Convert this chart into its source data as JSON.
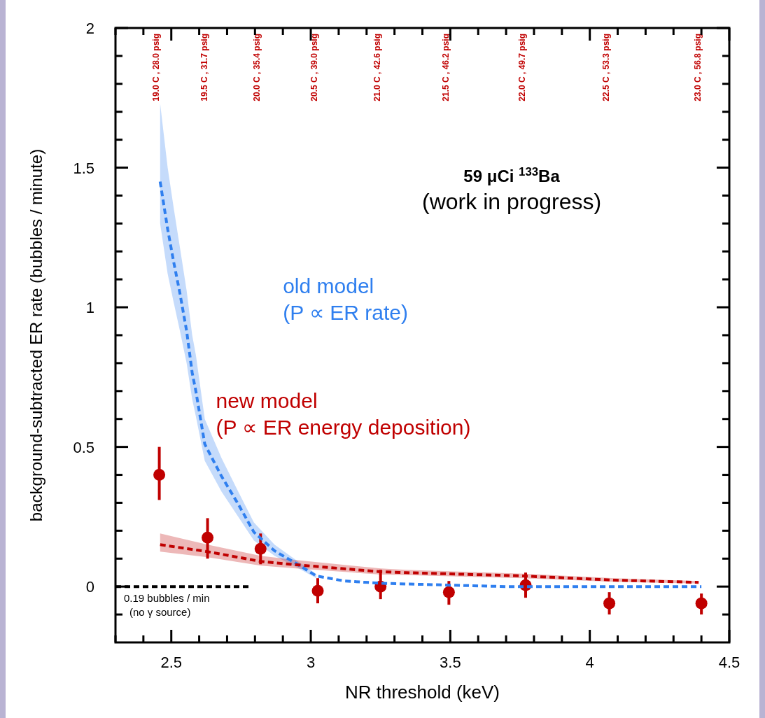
{
  "chart_data": {
    "type": "line",
    "xlabel": "NR threshold (keV)",
    "ylabel": "background-subtracted ER rate (bubbles / minute)",
    "xlim": [
      2.3,
      4.5
    ],
    "ylim": [
      -0.2,
      2
    ],
    "xticks": [
      {
        "value": 2.3,
        "label": null
      },
      {
        "value": 2.4,
        "label": null
      },
      2.5,
      {
        "value": 2.6,
        "label": null
      },
      {
        "value": 2.7,
        "label": null
      },
      {
        "value": 2.8,
        "label": null
      },
      {
        "value": 2.9,
        "label": null
      },
      3,
      {
        "value": 3.1,
        "label": null
      },
      {
        "value": 3.2,
        "label": null
      },
      {
        "value": 3.3,
        "label": null
      },
      {
        "value": 3.4,
        "label": null
      },
      3.5,
      {
        "value": 3.6,
        "label": null
      },
      {
        "value": 3.7,
        "label": null
      },
      {
        "value": 3.8,
        "label": null
      },
      {
        "value": 3.9,
        "label": null
      },
      4,
      {
        "value": 4.1,
        "label": null
      },
      {
        "value": 4.2,
        "label": null
      },
      {
        "value": 4.3,
        "label": null
      },
      {
        "value": 4.4,
        "label": null
      },
      4.5
    ],
    "yticks": [
      {
        "value": -0.1,
        "label": null
      },
      0,
      {
        "value": 0.1,
        "label": null
      },
      {
        "value": 0.2,
        "label": null
      },
      {
        "value": 0.3,
        "label": null
      },
      {
        "value": 0.4,
        "label": null
      },
      0.5,
      {
        "value": 0.6,
        "label": null
      },
      {
        "value": 0.7,
        "label": null
      },
      {
        "value": 0.8,
        "label": null
      },
      {
        "value": 0.9,
        "label": null
      },
      1,
      {
        "value": 1.1,
        "label": null
      },
      {
        "value": 1.2,
        "label": null
      },
      {
        "value": 1.3,
        "label": null
      },
      {
        "value": 1.4,
        "label": null
      },
      1.5,
      {
        "value": 1.6,
        "label": null
      },
      {
        "value": 1.7,
        "label": null
      },
      {
        "value": 1.8,
        "label": null
      },
      {
        "value": 1.9,
        "label": null
      },
      2
    ],
    "grid": false,
    "series": [
      {
        "name": "old model\n(P ∝ ER rate)",
        "color": "#2f7fef",
        "line_style": "dashed",
        "x": [
          2.46,
          2.487,
          2.508,
          2.53,
          2.555,
          2.575,
          2.588,
          2.62,
          2.68,
          2.74,
          2.796,
          2.87,
          2.947,
          3.02,
          3.12,
          3.25,
          3.5,
          3.7,
          4.0,
          4.4
        ],
        "values": [
          1.45,
          1.28,
          1.165,
          1.055,
          0.915,
          0.765,
          0.7,
          0.51,
          0.395,
          0.295,
          0.195,
          0.128,
          0.083,
          0.038,
          0.02,
          0.012,
          0.005,
          0,
          0,
          0
        ],
        "upper": [
          1.73,
          1.5,
          1.36,
          1.22,
          1.06,
          0.9,
          0.83,
          0.6,
          0.46,
          0.34,
          0.23,
          0.15,
          0.095,
          0.045,
          null,
          null,
          null,
          null,
          null,
          null
        ],
        "lower": [
          1.3,
          1.12,
          1.02,
          0.92,
          0.8,
          0.67,
          0.61,
          0.45,
          0.34,
          0.25,
          0.165,
          0.11,
          0.07,
          0.03,
          null,
          null,
          null,
          null,
          null,
          null
        ]
      },
      {
        "name": "new model\n(P ∝ ER energy deposition)",
        "color": "#c00000",
        "line_style": "dashed",
        "x": [
          2.46,
          2.63,
          2.82,
          2.947,
          3.25,
          3.34,
          3.76,
          4.09,
          4.39
        ],
        "values": [
          0.15,
          0.125,
          0.09,
          0.078,
          0.053,
          0.05,
          0.038,
          0.023,
          0.015
        ],
        "upper": [
          0.19,
          0.15,
          0.11,
          0.095,
          0.065,
          0.06,
          0.046,
          0.03,
          0.02
        ],
        "lower": [
          0.125,
          0.105,
          0.075,
          0.065,
          0.043,
          0.041,
          0.03,
          0.017,
          0.011
        ]
      },
      {
        "color": "#000000",
        "line_style": "dashed",
        "x": [
          2.3,
          2.78
        ],
        "values": [
          0,
          0
        ]
      },
      {
        "type": "scatter",
        "color": "#c00000",
        "marker": "circle",
        "x": [
          2.457,
          2.63,
          2.82,
          3.025,
          3.25,
          3.495,
          3.77,
          4.07,
          4.4
        ],
        "values": [
          0.4,
          0.175,
          0.135,
          -0.015,
          0,
          -0.02,
          0.005,
          -0.06,
          -0.06
        ],
        "errors": [
          [
            0.31,
            0.5
          ],
          [
            0.1,
            0.245
          ],
          [
            0.08,
            0.19
          ],
          [
            -0.06,
            0.03
          ],
          [
            -0.045,
            0.06
          ],
          [
            -0.065,
            0.02
          ],
          [
            -0.04,
            0.05
          ],
          [
            -0.1,
            -0.02
          ],
          [
            -0.1,
            -0.025
          ]
        ]
      }
    ],
    "annotations": [
      "59 μCi  $^{133}$Ba",
      "(work in progress)",
      "0.19 bubbles / min",
      "(no γ source)",
      "19.0 C , 28.0 psig",
      "19.5 C , 31.7 psig",
      "20.0 C , 35.4 psig",
      "20.5 C , 39.0 psig",
      "21.0 C , 42.6 psig",
      "21.5 C , 46.2 psig",
      "22.0 C , 49.7 psig",
      "22.5 C , 53.3 psig",
      "23.0 C , 56.8 psig"
    ]
  }
}
